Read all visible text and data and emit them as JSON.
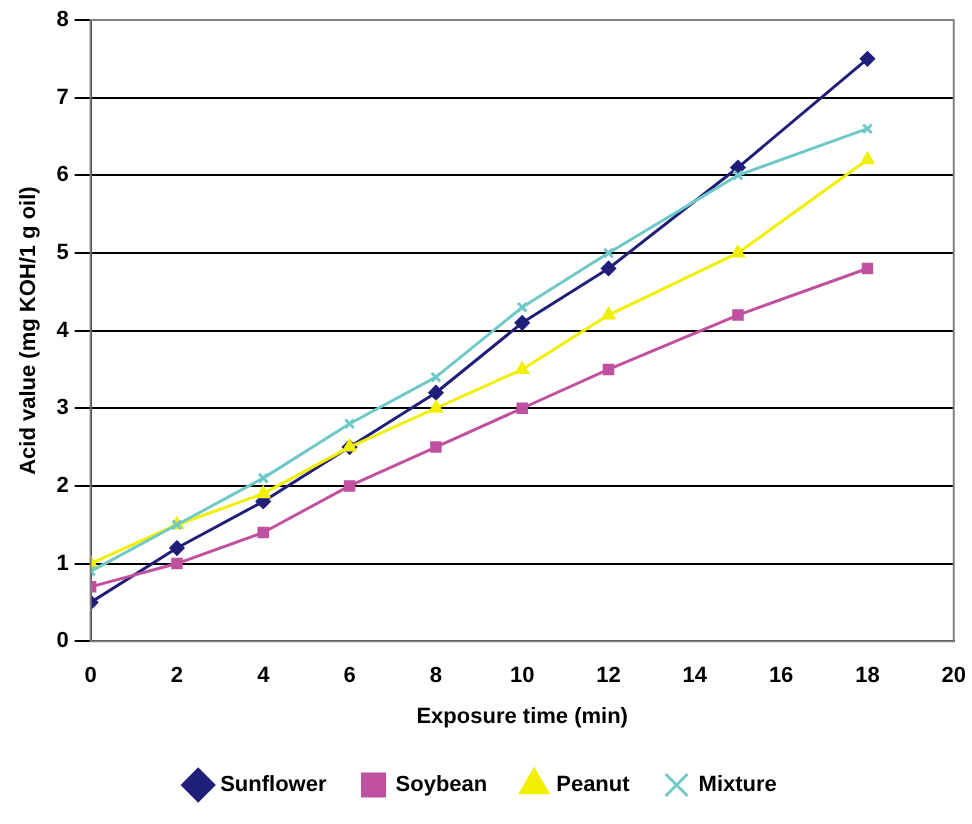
{
  "chart_data": {
    "type": "line",
    "xlabel": "Exposure time (min)",
    "ylabel": "Acid value (mg KOH/1 g oil)",
    "x": [
      0,
      2,
      4,
      6,
      8,
      10,
      12,
      15,
      18
    ],
    "series": [
      {
        "name": "Sunflower",
        "color": "#1f1f7a",
        "marker": "diamond",
        "values": [
          0.5,
          1.2,
          1.8,
          2.5,
          3.2,
          4.1,
          4.8,
          6.1,
          7.5
        ]
      },
      {
        "name": "Soybean",
        "color": "#c050a0",
        "marker": "square",
        "values": [
          0.7,
          1.0,
          1.4,
          2.0,
          2.5,
          3.0,
          3.5,
          4.2,
          4.8
        ]
      },
      {
        "name": "Peanut",
        "color": "#f0f000",
        "marker": "triangle",
        "values": [
          1.0,
          1.5,
          1.9,
          2.5,
          3.0,
          3.5,
          4.2,
          5.0,
          6.2
        ]
      },
      {
        "name": "Mixture",
        "color": "#70c8c8",
        "marker": "cross",
        "values": [
          0.9,
          1.5,
          2.1,
          2.8,
          3.4,
          4.3,
          5.0,
          6.0,
          6.6
        ]
      }
    ],
    "xlim": [
      0,
      20
    ],
    "xticks": [
      0,
      2,
      4,
      6,
      8,
      10,
      12,
      14,
      16,
      18,
      20
    ],
    "ylim": [
      0,
      8
    ],
    "yticks": [
      0,
      1,
      2,
      3,
      4,
      5,
      6,
      7,
      8
    ],
    "grid": "y",
    "legend": "bottom",
    "line_style": "solid"
  }
}
